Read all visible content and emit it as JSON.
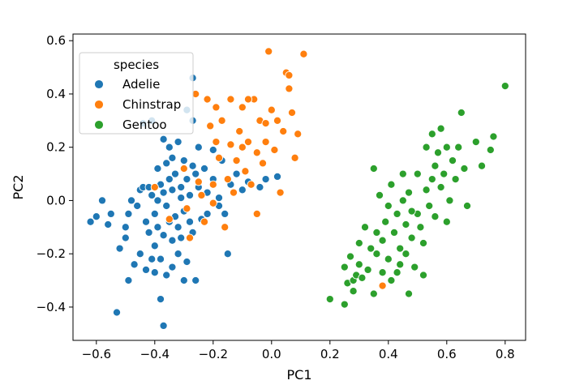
{
  "chart_data": {
    "type": "scatter",
    "title": "",
    "xlabel": "PC1",
    "ylabel": "PC2",
    "xlim": [
      -0.68,
      0.87
    ],
    "ylim": [
      -0.525,
      0.625
    ],
    "xticks": [
      -0.6,
      -0.4,
      -0.2,
      0.0,
      0.2,
      0.4,
      0.6,
      0.8
    ],
    "xtick_labels": [
      "−0.6",
      "−0.4",
      "−0.2",
      "0.0",
      "0.2",
      "0.4",
      "0.6",
      "0.8"
    ],
    "yticks": [
      -0.4,
      -0.2,
      0.0,
      0.2,
      0.4,
      0.6
    ],
    "ytick_labels": [
      "−0.4",
      "−0.2",
      "0.0",
      "0.2",
      "0.4",
      "0.6"
    ],
    "grid": false,
    "legend": {
      "title": "species",
      "position": "top-left"
    },
    "series": [
      {
        "name": "Adelie",
        "color": "#1f77b4",
        "points": [
          [
            -0.62,
            -0.08
          ],
          [
            -0.6,
            -0.06
          ],
          [
            -0.58,
            0.0
          ],
          [
            -0.56,
            -0.09
          ],
          [
            -0.55,
            -0.05
          ],
          [
            -0.53,
            -0.42
          ],
          [
            -0.52,
            -0.18
          ],
          [
            -0.5,
            -0.14
          ],
          [
            -0.5,
            -0.1
          ],
          [
            -0.49,
            -0.05
          ],
          [
            -0.49,
            -0.3
          ],
          [
            -0.48,
            0.0
          ],
          [
            -0.47,
            -0.24
          ],
          [
            -0.46,
            -0.02
          ],
          [
            -0.45,
            -0.2
          ],
          [
            -0.45,
            0.04
          ],
          [
            -0.44,
            0.29
          ],
          [
            -0.44,
            0.05
          ],
          [
            -0.43,
            -0.08
          ],
          [
            -0.43,
            -0.26
          ],
          [
            -0.42,
            0.05
          ],
          [
            -0.42,
            -0.12
          ],
          [
            -0.41,
            0.02
          ],
          [
            -0.41,
            -0.22
          ],
          [
            -0.41,
            0.3
          ],
          [
            -0.4,
            -0.05
          ],
          [
            -0.4,
            -0.17
          ],
          [
            -0.4,
            -0.27
          ],
          [
            -0.39,
            0.0
          ],
          [
            -0.39,
            0.12
          ],
          [
            -0.39,
            -0.1
          ],
          [
            -0.38,
            -0.22
          ],
          [
            -0.38,
            0.06
          ],
          [
            -0.38,
            -0.37
          ],
          [
            -0.37,
            -0.13
          ],
          [
            -0.37,
            0.23
          ],
          [
            -0.37,
            0.03
          ],
          [
            -0.37,
            -0.47
          ],
          [
            -0.36,
            -0.02
          ],
          [
            -0.36,
            -0.28
          ],
          [
            -0.36,
            0.14
          ],
          [
            -0.35,
            -0.08
          ],
          [
            -0.35,
            0.08
          ],
          [
            -0.35,
            0.2
          ],
          [
            -0.34,
            -0.15
          ],
          [
            -0.34,
            -0.25
          ],
          [
            -0.34,
            0.04
          ],
          [
            -0.34,
            0.16
          ],
          [
            -0.33,
            -0.06
          ],
          [
            -0.33,
            0.1
          ],
          [
            -0.32,
            -0.1
          ],
          [
            -0.32,
            -0.2
          ],
          [
            -0.32,
            0.22
          ],
          [
            -0.31,
            0.01
          ],
          [
            -0.31,
            -0.14
          ],
          [
            -0.31,
            0.05
          ],
          [
            -0.3,
            -0.3
          ],
          [
            -0.3,
            0.15
          ],
          [
            -0.3,
            -0.04
          ],
          [
            -0.29,
            -0.23
          ],
          [
            -0.29,
            0.34
          ],
          [
            -0.29,
            0.08
          ],
          [
            -0.28,
            -0.08
          ],
          [
            -0.28,
            0.02
          ],
          [
            -0.27,
            0.13
          ],
          [
            -0.27,
            -0.12
          ],
          [
            -0.27,
            0.3
          ],
          [
            -0.26,
            0.1
          ],
          [
            -0.26,
            -0.3
          ],
          [
            -0.25,
            0.05
          ],
          [
            -0.25,
            0.2
          ],
          [
            -0.24,
            -0.07
          ],
          [
            -0.23,
            0.12
          ],
          [
            -0.22,
            0.03
          ],
          [
            -0.22,
            -0.05
          ],
          [
            -0.2,
            0.08
          ],
          [
            -0.2,
            0.19
          ],
          [
            -0.18,
            0.01
          ],
          [
            -0.18,
            -0.02
          ],
          [
            -0.17,
            0.15
          ],
          [
            -0.16,
            -0.05
          ],
          [
            -0.15,
            -0.2
          ],
          [
            -0.14,
            0.06
          ],
          [
            -0.12,
            0.1
          ],
          [
            -0.1,
            0.04
          ],
          [
            -0.08,
            0.07
          ],
          [
            -0.05,
            -0.05
          ],
          [
            -0.04,
            0.05
          ],
          [
            -0.02,
            0.08
          ],
          [
            0.02,
            0.09
          ],
          [
            -0.27,
            0.46
          ]
        ]
      },
      {
        "name": "Chinstrap",
        "color": "#ff7f0e",
        "points": [
          [
            -0.4,
            0.05
          ],
          [
            -0.35,
            -0.07
          ],
          [
            -0.3,
            0.12
          ],
          [
            -0.29,
            -0.03
          ],
          [
            -0.28,
            -0.14
          ],
          [
            -0.26,
            0.4
          ],
          [
            -0.25,
            0.07
          ],
          [
            -0.24,
            0.02
          ],
          [
            -0.23,
            -0.08
          ],
          [
            -0.22,
            0.38
          ],
          [
            -0.21,
            0.28
          ],
          [
            -0.2,
            -0.01
          ],
          [
            -0.2,
            0.06
          ],
          [
            -0.19,
            0.22
          ],
          [
            -0.18,
            0.16
          ],
          [
            -0.17,
            0.3
          ],
          [
            -0.16,
            -0.1
          ],
          [
            -0.15,
            0.08
          ],
          [
            -0.14,
            0.21
          ],
          [
            -0.14,
            0.38
          ],
          [
            -0.13,
            0.03
          ],
          [
            -0.12,
            0.15
          ],
          [
            -0.11,
            0.26
          ],
          [
            -0.1,
            0.2
          ],
          [
            -0.1,
            0.35
          ],
          [
            -0.09,
            0.11
          ],
          [
            -0.08,
            0.22
          ],
          [
            -0.07,
            0.06
          ],
          [
            -0.06,
            0.38
          ],
          [
            -0.05,
            0.18
          ],
          [
            -0.05,
            -0.05
          ],
          [
            -0.04,
            0.3
          ],
          [
            -0.03,
            0.14
          ],
          [
            -0.02,
            0.22
          ],
          [
            -0.01,
            0.56
          ],
          [
            0.0,
            0.34
          ],
          [
            0.01,
            0.19
          ],
          [
            0.02,
            0.3
          ],
          [
            0.03,
            0.03
          ],
          [
            0.04,
            0.26
          ],
          [
            0.05,
            0.48
          ],
          [
            0.06,
            0.42
          ],
          [
            0.07,
            0.33
          ],
          [
            0.08,
            0.16
          ],
          [
            0.09,
            0.25
          ],
          [
            0.11,
            0.55
          ],
          [
            0.06,
            0.47
          ],
          [
            -0.02,
            0.29
          ],
          [
            -0.19,
            0.35
          ],
          [
            -0.08,
            0.38
          ],
          [
            0.38,
            -0.32
          ]
        ]
      },
      {
        "name": "Gentoo",
        "color": "#2ca02c",
        "points": [
          [
            0.2,
            -0.37
          ],
          [
            0.25,
            -0.25
          ],
          [
            0.25,
            -0.39
          ],
          [
            0.26,
            -0.31
          ],
          [
            0.27,
            -0.21
          ],
          [
            0.28,
            -0.3
          ],
          [
            0.28,
            -0.34
          ],
          [
            0.29,
            -0.28
          ],
          [
            0.3,
            -0.24
          ],
          [
            0.3,
            -0.16
          ],
          [
            0.31,
            -0.29
          ],
          [
            0.32,
            -0.1
          ],
          [
            0.33,
            -0.26
          ],
          [
            0.34,
            -0.18
          ],
          [
            0.35,
            -0.35
          ],
          [
            0.35,
            0.12
          ],
          [
            0.36,
            -0.12
          ],
          [
            0.36,
            -0.2
          ],
          [
            0.37,
            0.02
          ],
          [
            0.38,
            -0.27
          ],
          [
            0.38,
            -0.15
          ],
          [
            0.39,
            -0.08
          ],
          [
            0.4,
            -0.02
          ],
          [
            0.4,
            -0.22
          ],
          [
            0.41,
            0.06
          ],
          [
            0.41,
            -0.3
          ],
          [
            0.42,
            -0.12
          ],
          [
            0.43,
            -0.05
          ],
          [
            0.43,
            -0.27
          ],
          [
            0.44,
            -0.18
          ],
          [
            0.45,
            0.0
          ],
          [
            0.45,
            0.1
          ],
          [
            0.46,
            -0.09
          ],
          [
            0.46,
            -0.2
          ],
          [
            0.47,
            -0.35
          ],
          [
            0.47,
            0.03
          ],
          [
            0.48,
            -0.14
          ],
          [
            0.49,
            -0.25
          ],
          [
            0.5,
            0.1
          ],
          [
            0.5,
            -0.05
          ],
          [
            0.51,
            -0.1
          ],
          [
            0.52,
            -0.28
          ],
          [
            0.53,
            0.04
          ],
          [
            0.53,
            0.2
          ],
          [
            0.54,
            -0.02
          ],
          [
            0.55,
            0.08
          ],
          [
            0.56,
            0.13
          ],
          [
            0.56,
            -0.06
          ],
          [
            0.57,
            0.18
          ],
          [
            0.58,
            0.27
          ],
          [
            0.58,
            0.05
          ],
          [
            0.59,
            0.1
          ],
          [
            0.6,
            0.2
          ],
          [
            0.61,
            0.0
          ],
          [
            0.62,
            0.15
          ],
          [
            0.63,
            0.08
          ],
          [
            0.64,
            0.2
          ],
          [
            0.65,
            0.33
          ],
          [
            0.66,
            0.12
          ],
          [
            0.67,
            -0.02
          ],
          [
            0.7,
            0.22
          ],
          [
            0.72,
            0.13
          ],
          [
            0.75,
            0.19
          ],
          [
            0.76,
            0.24
          ],
          [
            0.8,
            0.43
          ],
          [
            0.6,
            -0.08
          ],
          [
            0.55,
            0.25
          ],
          [
            0.48,
            -0.04
          ],
          [
            0.52,
            -0.16
          ],
          [
            0.44,
            -0.24
          ]
        ]
      }
    ]
  }
}
